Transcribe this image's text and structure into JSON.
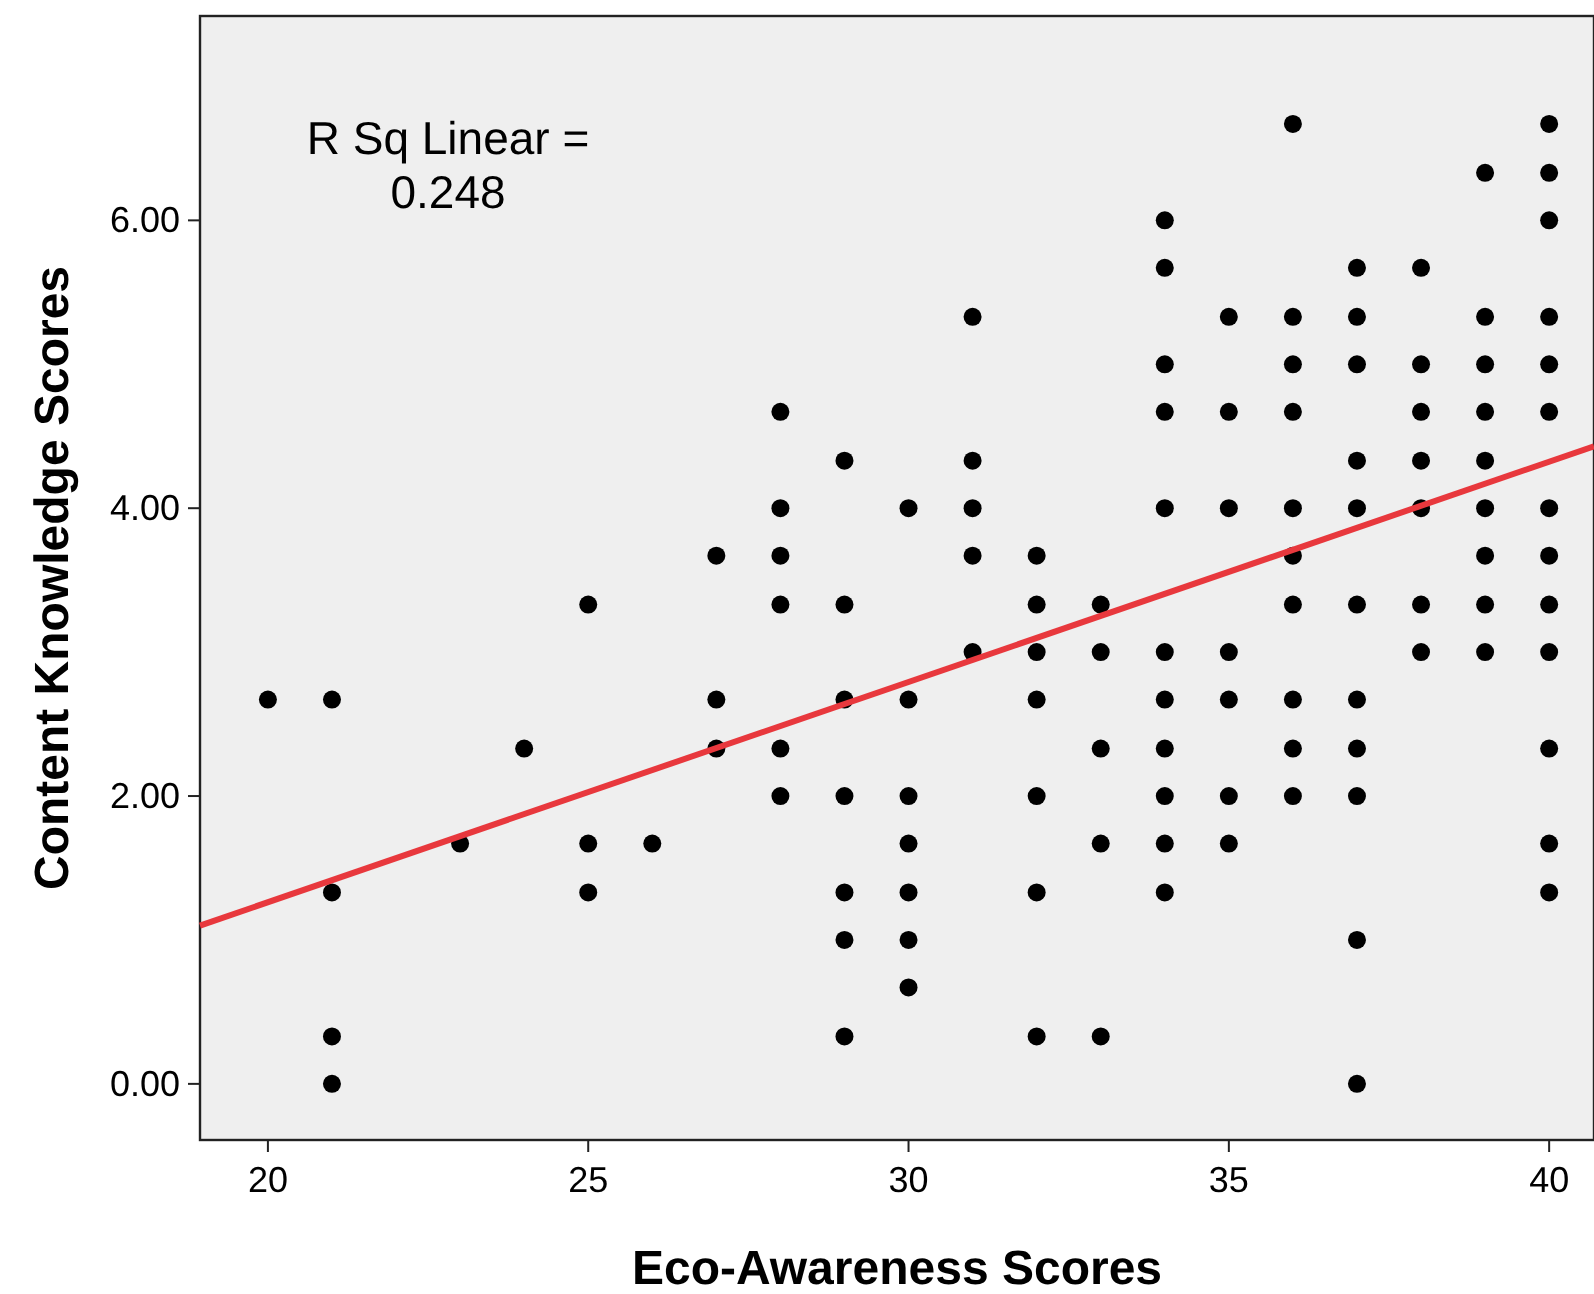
{
  "chart_data": {
    "type": "scatter",
    "xlabel": "Eco-Awareness Scores",
    "ylabel": "Content Knowledge Scores",
    "annotations": [
      "R Sq Linear = 0.248"
    ],
    "xlim": [
      18.94,
      40.7
    ],
    "ylim": [
      -0.39,
      7.42
    ],
    "xticks": [
      20,
      25,
      30,
      35,
      40
    ],
    "yticks": [
      {
        "value": 0,
        "label": "0.00"
      },
      {
        "value": 2,
        "label": "2.00"
      },
      {
        "value": 4,
        "label": "4.00"
      },
      {
        "value": 6,
        "label": "6.00"
      }
    ],
    "grid": false,
    "series": [
      {
        "marker": "circle",
        "color": "#000000",
        "x": [
          20,
          21,
          21,
          21,
          21,
          23,
          24,
          25,
          25,
          25,
          26,
          27,
          27,
          27,
          28,
          28,
          28,
          28,
          28,
          28,
          29,
          29,
          29,
          29,
          29,
          29,
          29,
          30,
          30,
          30,
          30,
          30,
          30,
          30,
          31,
          31,
          31,
          31,
          31,
          32,
          32,
          32,
          32,
          32,
          32,
          32,
          33,
          33,
          33,
          33,
          33,
          34,
          34,
          34,
          34,
          34,
          34,
          34,
          34,
          34,
          34,
          34,
          35,
          35,
          35,
          35,
          35,
          35,
          35,
          36,
          36,
          36,
          36,
          36,
          36,
          36,
          36,
          36,
          36,
          37,
          37,
          37,
          37,
          37,
          37,
          37,
          37,
          37,
          37,
          37,
          38,
          38,
          38,
          38,
          38,
          38,
          38,
          39,
          39,
          39,
          39,
          39,
          39,
          39,
          39,
          39,
          40,
          40,
          40,
          40,
          40,
          40,
          40,
          40,
          40,
          40,
          40,
          40,
          40
        ],
        "values": [
          2.67,
          2.67,
          1.33,
          0.33,
          0,
          1.67,
          2.33,
          3.33,
          1.67,
          1.33,
          1.67,
          3.67,
          2.67,
          2.33,
          4.67,
          4,
          3.67,
          3.33,
          2.33,
          2,
          4.33,
          3.33,
          2.67,
          2,
          1.33,
          1,
          0.33,
          4,
          2.67,
          2,
          1.67,
          1.33,
          1,
          0.67,
          5.33,
          4.33,
          4,
          3.67,
          3,
          3.67,
          3.33,
          3,
          2.67,
          2,
          1.33,
          0.33,
          3.33,
          3,
          2.33,
          1.67,
          0.33,
          6,
          5.67,
          5,
          4.67,
          4,
          3,
          2.67,
          2.33,
          2,
          1.67,
          1.33,
          5.33,
          4.67,
          4,
          3,
          2.67,
          2,
          1.67,
          6.67,
          5.33,
          5,
          4.67,
          4,
          3.67,
          3.33,
          2.67,
          2.33,
          2,
          5.67,
          5.33,
          5,
          4.33,
          4,
          3.33,
          2.67,
          2.33,
          2,
          1,
          0,
          5.67,
          5,
          4.67,
          4.33,
          4,
          3.33,
          3,
          6.33,
          5.33,
          5,
          4.67,
          4.33,
          4,
          3.67,
          3.33,
          3,
          6.67,
          6.33,
          6,
          5.33,
          5,
          4.67,
          4,
          3.67,
          3.33,
          3,
          2.33,
          1.67,
          1.33
        ]
      },
      {
        "type": "line",
        "marker": "none",
        "color": "#e8383d",
        "x": [
          18.94,
          40.7
        ],
        "values": [
          1.1,
          4.43
        ]
      }
    ]
  }
}
